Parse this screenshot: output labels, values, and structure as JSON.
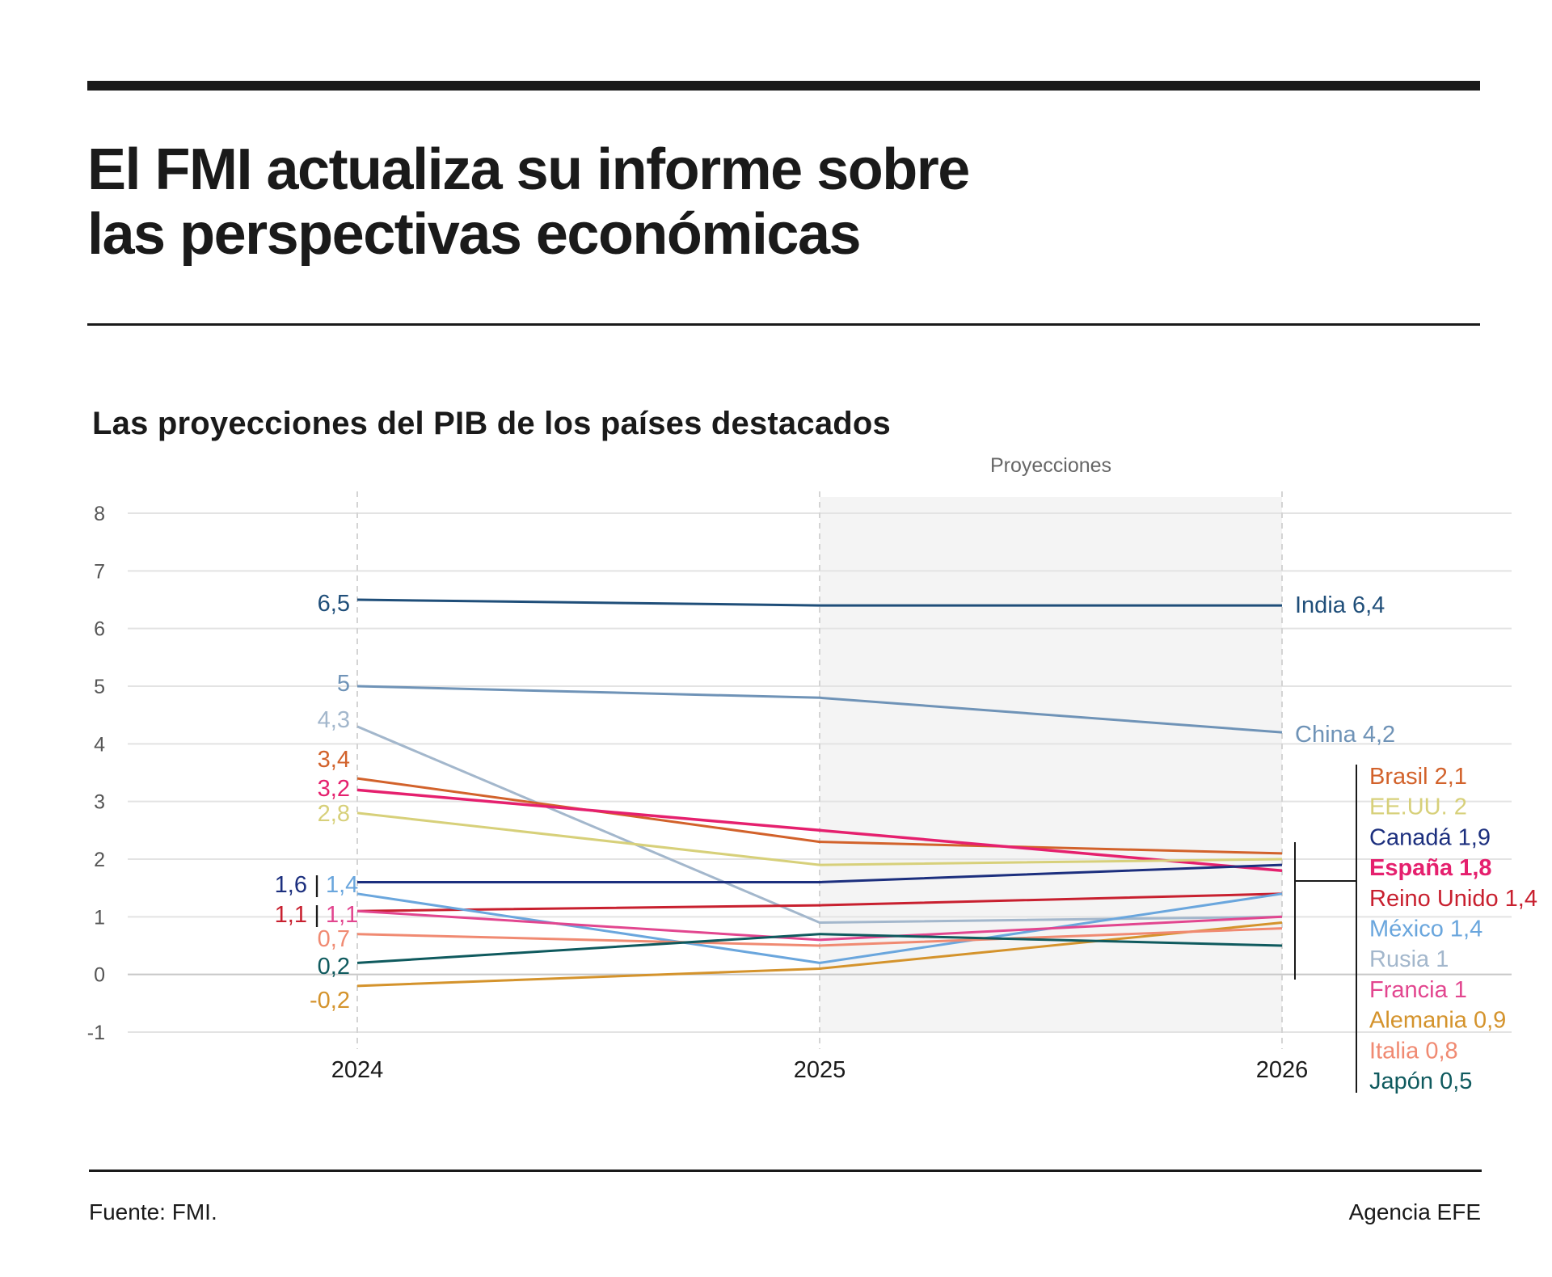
{
  "header": {
    "title_line1": "El FMI actualiza su informe sobre",
    "title_line2": "las perspectivas económicas"
  },
  "chart_data": {
    "type": "line",
    "title": "Las proyecciones del PIB de los países destacados",
    "projection_label": "Proyecciones",
    "projection_range": [
      "2025",
      "2026"
    ],
    "x": [
      "2024",
      "2025",
      "2026"
    ],
    "ylim": [
      -1,
      8
    ],
    "yticks": [
      "8",
      "7",
      "6",
      "5",
      "4",
      "3",
      "2",
      "1",
      "0",
      "-1"
    ],
    "grid": true,
    "series": [
      {
        "name": "India",
        "values": [
          6.5,
          6.4,
          6.4
        ],
        "color": "#1f4e79",
        "start_label": "6,5",
        "end_label": "India 6,4"
      },
      {
        "name": "China",
        "values": [
          5.0,
          4.8,
          4.2
        ],
        "color": "#6f93b7",
        "start_label": "5",
        "end_label": "China 4,2"
      },
      {
        "name": "Rusia",
        "values": [
          4.3,
          0.9,
          1.0
        ],
        "color": "#a3b7cc",
        "start_label": "4,3",
        "end_label": "Rusia 1"
      },
      {
        "name": "Brasil",
        "values": [
          3.4,
          2.3,
          2.1
        ],
        "color": "#d2622b",
        "start_label": "3,4",
        "end_label": "Brasil 2,1"
      },
      {
        "name": "España",
        "values": [
          3.2,
          2.5,
          1.8
        ],
        "color": "#e5206e",
        "start_label": "3,2",
        "end_label": "España 1,8",
        "bold": true
      },
      {
        "name": "EE.UU.",
        "values": [
          2.8,
          1.9,
          2.0
        ],
        "color": "#d7d07a",
        "start_label": "2,8",
        "end_label": "EE.UU. 2"
      },
      {
        "name": "Canadá",
        "values": [
          1.6,
          1.6,
          1.9
        ],
        "color": "#1c2f7e",
        "start_label": "1,6",
        "end_label": "Canadá 1,9"
      },
      {
        "name": "Reino Unido",
        "values": [
          1.1,
          1.2,
          1.4
        ],
        "color": "#c8202f",
        "start_label": "1,1",
        "end_label": "Reino Unido 1,4"
      },
      {
        "name": "México",
        "values": [
          1.4,
          0.2,
          1.4
        ],
        "color": "#6aa6dd",
        "start_label": "1,4",
        "end_label": "México 1,4"
      },
      {
        "name": "Francia",
        "values": [
          1.1,
          0.6,
          1.0
        ],
        "color": "#e2468f",
        "start_label": "1,1",
        "end_label": "Francia 1"
      },
      {
        "name": "Alemania",
        "values": [
          -0.2,
          0.1,
          0.9
        ],
        "color": "#d4932c",
        "start_label": "-0,2",
        "end_label": "Alemania 0,9"
      },
      {
        "name": "Italia",
        "values": [
          0.7,
          0.5,
          0.8
        ],
        "color": "#f08a72",
        "start_label": "0,7",
        "end_label": "Italia 0,8"
      },
      {
        "name": "Japón",
        "values": [
          0.2,
          0.7,
          0.5
        ],
        "color": "#0f5a5e",
        "start_label": "0,2",
        "end_label": "Japón 0,5"
      }
    ],
    "legend_order": [
      "Brasil",
      "EE.UU.",
      "Canadá",
      "España",
      "Reino Unido",
      "México",
      "Rusia",
      "Francia",
      "Alemania",
      "Italia",
      "Japón"
    ],
    "start_label_separator": "|"
  },
  "footer": {
    "source": "Fuente: FMI.",
    "credit": "Agencia EFE"
  }
}
